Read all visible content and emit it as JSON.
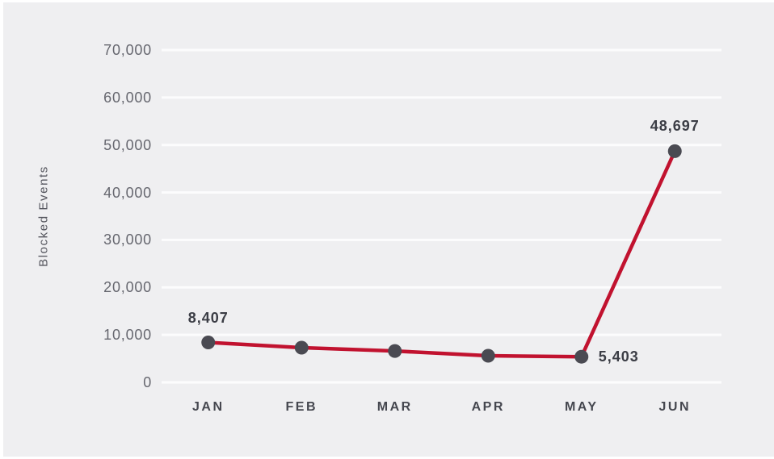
{
  "chart_data": {
    "type": "line",
    "title": "",
    "xlabel": "",
    "ylabel": "Blocked Events",
    "categories": [
      "JAN",
      "FEB",
      "MAR",
      "APR",
      "MAY",
      "JUN"
    ],
    "series": [
      {
        "name": "Blocked Events",
        "values": [
          8407,
          7300,
          6600,
          5600,
          5403,
          48697
        ]
      }
    ],
    "point_labels": [
      {
        "index": 0,
        "text": "8,407",
        "position": "above"
      },
      {
        "index": 4,
        "text": "5,403",
        "position": "right"
      },
      {
        "index": 5,
        "text": "48,697",
        "position": "above"
      }
    ],
    "ylim": [
      0,
      70000
    ],
    "ytick_step": 10000,
    "ytick_labels": [
      "0",
      "10,000",
      "20,000",
      "30,000",
      "40,000",
      "50,000",
      "60,000",
      "70,000"
    ],
    "grid": "horizontal-only",
    "legend": "none",
    "colors": {
      "background": "#efeff1",
      "gridline": "#fcfcfd",
      "line": "#c1122f",
      "marker": "#4a4a52",
      "tick_text": "#66676f",
      "month_text": "#45474f",
      "label_text": "#3b3d45",
      "axis_title_text": "#55565e"
    }
  }
}
